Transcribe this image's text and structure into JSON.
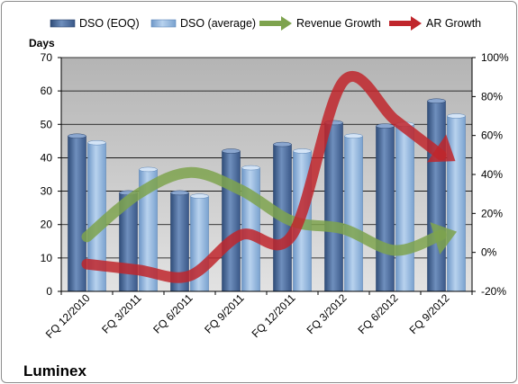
{
  "company_label": "Luminex",
  "chart_data": {
    "type": "bar",
    "title": "",
    "categories": [
      "FQ 12/2010",
      "FQ 3/2011",
      "FQ 6/2011",
      "FQ 9/2011",
      "FQ 12/2011",
      "FQ 3/2012",
      "FQ 6/2012",
      "FQ 9/2012"
    ],
    "y_left": {
      "label": "Days",
      "min": 0,
      "max": 70,
      "step": 10
    },
    "y_right": {
      "label": "",
      "min": -20,
      "max": 100,
      "step": 20,
      "unit": "%"
    },
    "legend_position": "top",
    "grid": true,
    "series": [
      {
        "name": "DSO (EOQ)",
        "type": "bar",
        "axis": "left",
        "color": "#4a6a98",
        "values": [
          46.5,
          29.5,
          29.5,
          42,
          44,
          50.5,
          49.5,
          57
        ]
      },
      {
        "name": "DSO (average)",
        "type": "bar",
        "axis": "left",
        "color": "#8fb3db",
        "values": [
          44.5,
          36.5,
          28.5,
          37,
          42,
          46.5,
          50,
          52.5
        ]
      },
      {
        "name": "Revenue Growth",
        "type": "line",
        "axis": "right",
        "color": "#7ea34e",
        "values": [
          8,
          30,
          41,
          32,
          16,
          12,
          1,
          9
        ]
      },
      {
        "name": "AR Growth",
        "type": "line",
        "axis": "right",
        "color": "#c0262c",
        "values": [
          -6,
          -9,
          -12,
          9,
          9,
          88,
          68,
          50
        ]
      }
    ]
  }
}
